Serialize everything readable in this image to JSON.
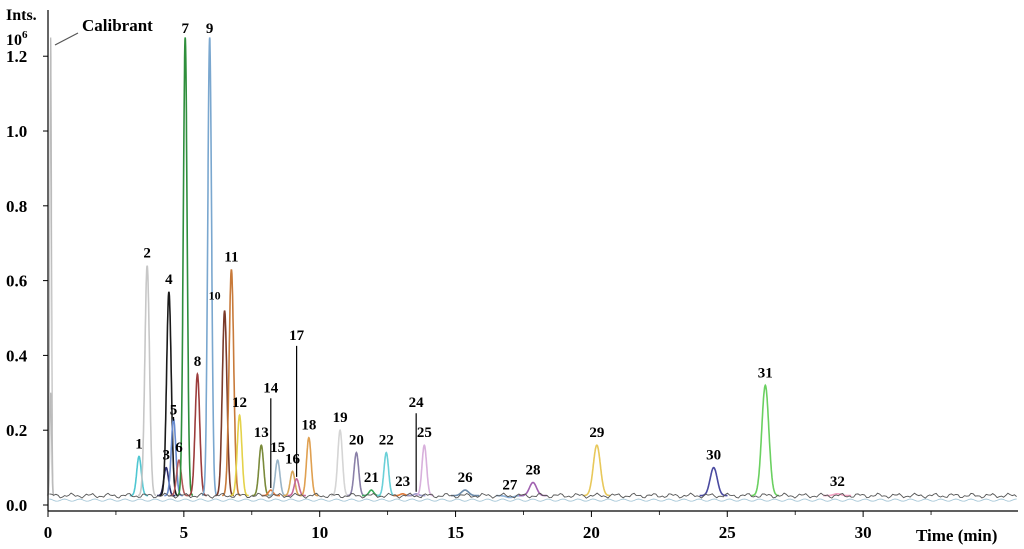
{
  "chart_data": {
    "type": "line",
    "title": "",
    "ylabel_line1": "Ints.",
    "ylabel_line2_base": "10",
    "ylabel_line2_exp": "6",
    "xlabel": "Time (min)",
    "calibrant_label": "Calibrant",
    "xlim": [
      0,
      35.7
    ],
    "ylim": [
      0,
      1.23
    ],
    "xticks": [
      0,
      5,
      10,
      15,
      20,
      25,
      30
    ],
    "xtick_labels": [
      "0",
      "5",
      "10",
      "15",
      "20",
      "25",
      "30"
    ],
    "yticks": [
      0.0,
      0.2,
      0.4,
      0.6,
      0.8,
      1.0,
      1.2
    ],
    "ytick_labels": [
      "0.0",
      "0.2",
      "0.4",
      "0.6",
      "0.8",
      "1.0",
      "1.2"
    ],
    "grid": false,
    "baseline_level": 0.025,
    "calibrant_peaks": [
      {
        "x": 0.1,
        "y": 1.25
      },
      {
        "x": 0.1,
        "y": 0.3
      }
    ],
    "peaks": [
      {
        "label": "1",
        "x": 3.35,
        "y": 0.13,
        "color": "#4fc7d2"
      },
      {
        "label": "2",
        "x": 3.65,
        "y": 0.64,
        "color": "#c7c7c7"
      },
      {
        "label": "3",
        "x": 4.35,
        "y": 0.1,
        "color": "#2a2a6b"
      },
      {
        "label": "4",
        "x": 4.45,
        "y": 0.57,
        "color": "#1a1a1a"
      },
      {
        "label": "5",
        "x": 4.62,
        "y": 0.23,
        "color": "#6a8ccf"
      },
      {
        "label": "6",
        "x": 4.82,
        "y": 0.12,
        "color": "#b35a5a"
      },
      {
        "label": "7",
        "x": 5.05,
        "y": 1.25,
        "color": "#2f8f3c"
      },
      {
        "label": "8",
        "x": 5.5,
        "y": 0.35,
        "color": "#9c3c3c"
      },
      {
        "label": "9",
        "x": 5.95,
        "y": 1.25,
        "color": "#7aa7cf"
      },
      {
        "label": "10",
        "x": 6.5,
        "y": 0.52,
        "color": "#7a3a2a"
      },
      {
        "label": "11",
        "x": 6.75,
        "y": 0.63,
        "color": "#c87a3a"
      },
      {
        "label": "12",
        "x": 7.05,
        "y": 0.24,
        "color": "#e4d24a"
      },
      {
        "label": "13",
        "x": 7.85,
        "y": 0.16,
        "color": "#7a8a3a"
      },
      {
        "label": "14",
        "x": 8.2,
        "y": 0.04,
        "color": "#e07a3a"
      },
      {
        "label": "15",
        "x": 8.45,
        "y": 0.12,
        "color": "#9ab5c8"
      },
      {
        "label": "16",
        "x": 9.0,
        "y": 0.09,
        "color": "#d9a85a"
      },
      {
        "label": "17",
        "x": 9.15,
        "y": 0.07,
        "color": "#c46a9a"
      },
      {
        "label": "18",
        "x": 9.6,
        "y": 0.18,
        "color": "#e0a050"
      },
      {
        "label": "19",
        "x": 10.75,
        "y": 0.2,
        "color": "#d5d5d5"
      },
      {
        "label": "20",
        "x": 11.35,
        "y": 0.14,
        "color": "#8a80a8"
      },
      {
        "label": "21",
        "x": 11.9,
        "y": 0.04,
        "color": "#3aaa5a"
      },
      {
        "label": "22",
        "x": 12.45,
        "y": 0.14,
        "color": "#6ad0d8"
      },
      {
        "label": "23",
        "x": 13.05,
        "y": 0.03,
        "color": "#e07a3a"
      },
      {
        "label": "24",
        "x": 13.55,
        "y": 0.03,
        "color": "#9a9ac8"
      },
      {
        "label": "25",
        "x": 13.85,
        "y": 0.16,
        "color": "#d8b0dc"
      },
      {
        "label": "26",
        "x": 15.35,
        "y": 0.04,
        "color": "#6a8aaa"
      },
      {
        "label": "27",
        "x": 17.0,
        "y": 0.02,
        "color": "#8ab0d8"
      },
      {
        "label": "28",
        "x": 17.85,
        "y": 0.06,
        "color": "#a060b0"
      },
      {
        "label": "29",
        "x": 20.2,
        "y": 0.16,
        "color": "#e8c85a"
      },
      {
        "label": "30",
        "x": 24.5,
        "y": 0.1,
        "color": "#4a4aa0"
      },
      {
        "label": "31",
        "x": 26.4,
        "y": 0.32,
        "color": "#6ad060"
      },
      {
        "label": "32",
        "x": 29.05,
        "y": 0.03,
        "color": "#f0a0c0"
      }
    ]
  }
}
